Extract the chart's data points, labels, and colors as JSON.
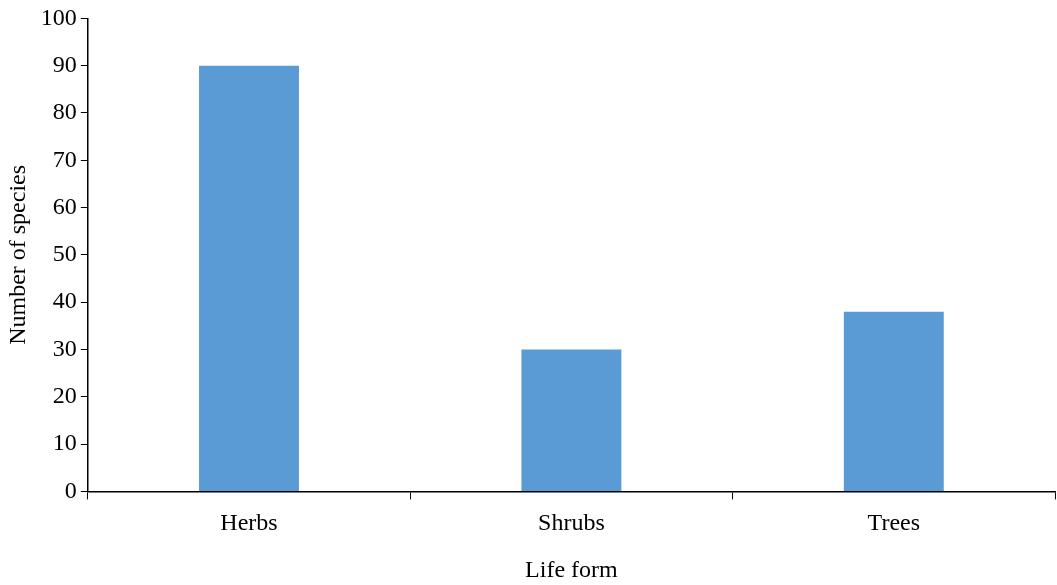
{
  "chart_data": {
    "type": "bar",
    "xlabel": "Life form",
    "ylabel": "Number of species",
    "categories": [
      "Herbs",
      "Shrubs",
      "Trees"
    ],
    "values": [
      90,
      30,
      38
    ],
    "color": "#5b9bd5",
    "ylim": [
      0,
      100
    ],
    "yticks": [
      0,
      10,
      20,
      30,
      40,
      50,
      60,
      70,
      80,
      90,
      100
    ],
    "grid": false,
    "legend": false
  }
}
